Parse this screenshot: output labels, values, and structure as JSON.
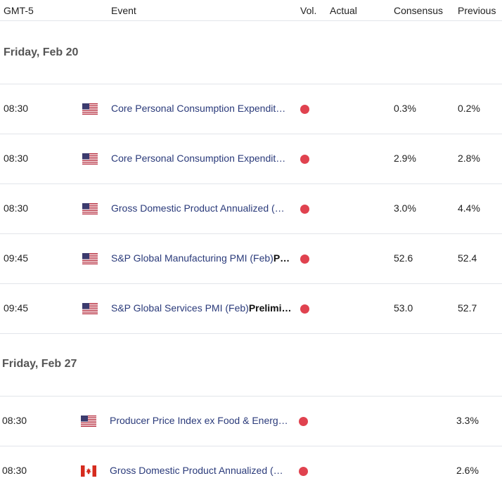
{
  "header": {
    "timezone": "GMT-5",
    "event": "Event",
    "vol": "Vol.",
    "actual": "Actual",
    "consensus": "Consensus",
    "previous": "Previous"
  },
  "groups": [
    {
      "date": "Friday, Feb 20",
      "rows": [
        {
          "time": "08:30",
          "country": "US",
          "event": "Core Personal Consumption Expendit…",
          "bold": "",
          "volatility": "high",
          "actual": "",
          "consensus": "0.3%",
          "previous": "0.2%"
        },
        {
          "time": "08:30",
          "country": "US",
          "event": "Core Personal Consumption Expendit…",
          "bold": "",
          "volatility": "high",
          "actual": "",
          "consensus": "2.9%",
          "previous": "2.8%"
        },
        {
          "time": "08:30",
          "country": "US",
          "event": "Gross Domestic Product Annualized (…",
          "bold": "",
          "volatility": "high",
          "actual": "",
          "consensus": "3.0%",
          "previous": "4.4%"
        },
        {
          "time": "09:45",
          "country": "US",
          "event": "S&P Global Manufacturing PMI (Feb)",
          "bold": "P…",
          "volatility": "high",
          "actual": "",
          "consensus": "52.6",
          "previous": "52.4"
        },
        {
          "time": "09:45",
          "country": "US",
          "event": "S&P Global Services PMI (Feb)",
          "bold": "Prelimi…",
          "volatility": "high",
          "actual": "",
          "consensus": "53.0",
          "previous": "52.7"
        }
      ]
    },
    {
      "date": "Friday, Feb 27",
      "rows": [
        {
          "time": "08:30",
          "country": "US",
          "event": "Producer Price Index ex Food & Energ…",
          "bold": "",
          "volatility": "high",
          "actual": "",
          "consensus": "",
          "previous": "3.3%"
        },
        {
          "time": "08:30",
          "country": "CA",
          "event": "Gross Domestic Product Annualized (…",
          "bold": "",
          "volatility": "high",
          "actual": "",
          "consensus": "",
          "previous": "2.6%"
        }
      ]
    }
  ],
  "colors": {
    "volatility_high": "#e0424f",
    "event_text": "#2a3a7a"
  },
  "icons": {
    "US": "us-flag-icon",
    "CA": "canada-flag-icon"
  }
}
